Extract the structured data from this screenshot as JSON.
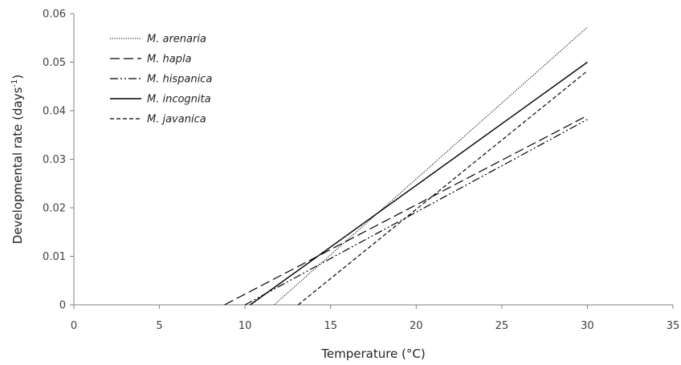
{
  "chart_data": {
    "type": "line",
    "xlabel": "Temperature (°C)",
    "ylabel_main": "Developmental rate (days",
    "ylabel_sup": "-1",
    "ylabel_close": ")",
    "xlim": [
      0,
      35
    ],
    "ylim": [
      0,
      0.06
    ],
    "x_ticks": [
      0,
      5,
      10,
      15,
      20,
      25,
      30,
      35
    ],
    "y_ticks": [
      0,
      0.01,
      0.02,
      0.03,
      0.04,
      0.05,
      0.06
    ],
    "x_tick_labels": [
      "0",
      "5",
      "10",
      "15",
      "20",
      "25",
      "30",
      "35"
    ],
    "y_tick_labels": [
      "0",
      "0.01",
      "0.02",
      "0.03",
      "0.04",
      "0.05",
      "0.06"
    ],
    "grid": false,
    "legend_position": "top-left",
    "series": [
      {
        "name": "M. arenaria",
        "dash": "dotted",
        "x": [
          11.7,
          30
        ],
        "y": [
          0,
          0.0572
        ]
      },
      {
        "name": "M. hapla",
        "dash": "longdash",
        "x": [
          8.8,
          30
        ],
        "y": [
          0,
          0.039
        ]
      },
      {
        "name": "M. hispanica",
        "dash": "dashdotdot",
        "x": [
          10.0,
          30
        ],
        "y": [
          0,
          0.0382
        ]
      },
      {
        "name": "M. incognita",
        "dash": "solid",
        "x": [
          10.3,
          30
        ],
        "y": [
          0,
          0.05
        ]
      },
      {
        "name": "M. javanica",
        "dash": "shortdash",
        "x": [
          13.1,
          30
        ],
        "y": [
          0,
          0.0482
        ]
      }
    ]
  }
}
